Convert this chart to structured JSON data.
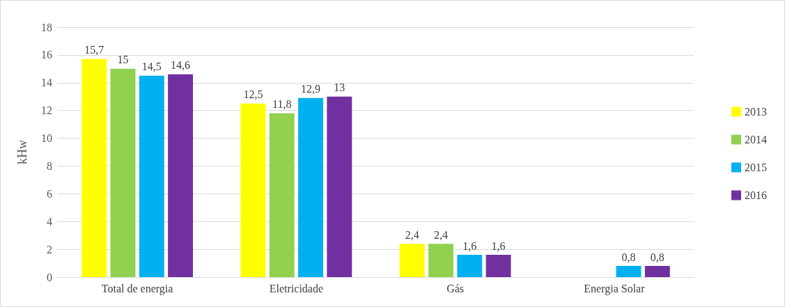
{
  "chart_data": {
    "type": "bar",
    "ylabel": "kHw",
    "categories": [
      "Total de energia",
      "Eletricidade",
      "Gás",
      "Energia Solar"
    ],
    "series": [
      {
        "name": "2013",
        "color": "#ffff00",
        "values": [
          15.7,
          12.5,
          2.4,
          null
        ],
        "value_labels": [
          "15,7",
          "12,5",
          "2,4",
          null
        ]
      },
      {
        "name": "2014",
        "color": "#92d050",
        "values": [
          15,
          11.8,
          2.4,
          null
        ],
        "value_labels": [
          "15",
          "11,8",
          "2,4",
          null
        ]
      },
      {
        "name": "2015",
        "color": "#00b0f0",
        "values": [
          14.5,
          12.9,
          1.6,
          0.8
        ],
        "value_labels": [
          "14,5",
          "12,9",
          "1,6",
          "0,8"
        ]
      },
      {
        "name": "2016",
        "color": "#7030a0",
        "values": [
          14.6,
          13,
          1.6,
          0.8
        ],
        "value_labels": [
          "14,6",
          "13",
          "1,6",
          "0,8"
        ]
      }
    ],
    "ylim": [
      0,
      18
    ],
    "yticks": [
      0,
      2,
      4,
      6,
      8,
      10,
      12,
      14,
      16,
      18
    ],
    "grid": "y",
    "legend": "right"
  }
}
